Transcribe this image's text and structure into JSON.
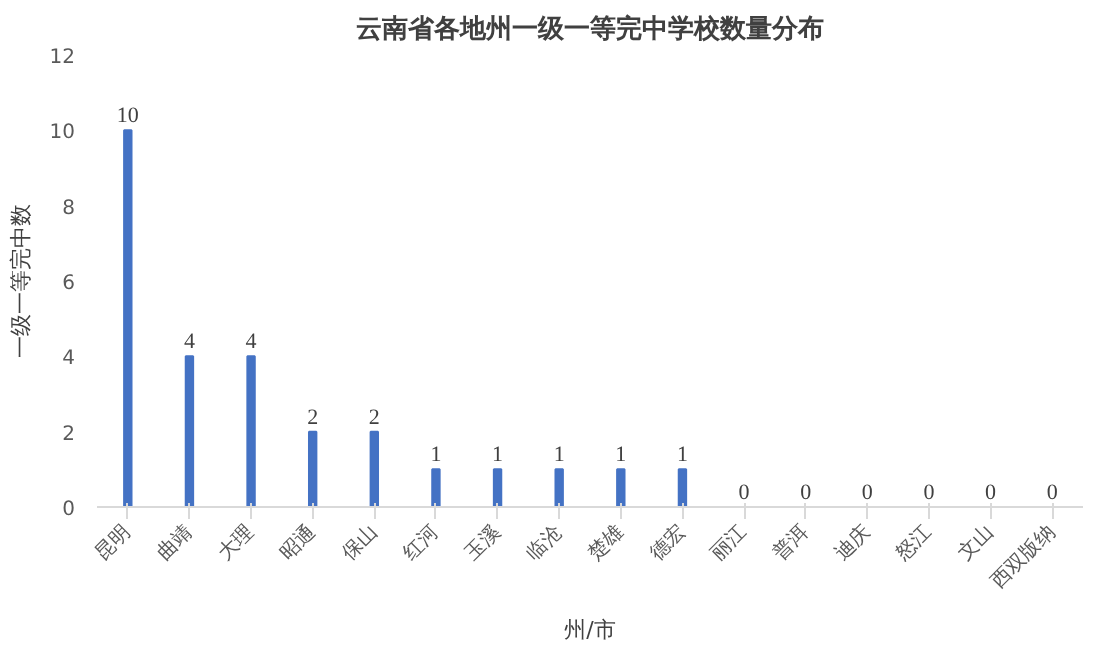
{
  "chart_data": {
    "type": "bar",
    "title": "云南省各地州一级一等完中学校数量分布",
    "xlabel": "州/市",
    "ylabel": "一级一等完中数",
    "categories": [
      "昆明",
      "曲靖",
      "大理",
      "昭通",
      "保山",
      "红河",
      "玉溪",
      "临沧",
      "楚雄",
      "德宏",
      "丽江",
      "普洱",
      "迪庆",
      "怒江",
      "文山",
      "西双版纳"
    ],
    "values": [
      10,
      4,
      4,
      2,
      2,
      1,
      1,
      1,
      1,
      1,
      0,
      0,
      0,
      0,
      0,
      0
    ],
    "color": "#4472c4",
    "ylim": [
      0,
      12
    ],
    "yticks": [
      0,
      2,
      4,
      6,
      8,
      10,
      12
    ],
    "grid": false,
    "data_labels": true
  }
}
